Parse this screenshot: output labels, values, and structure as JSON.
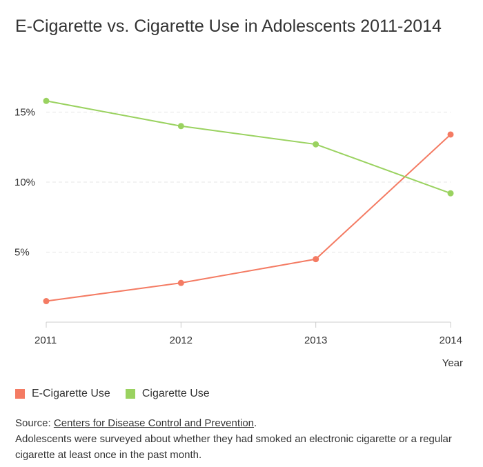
{
  "title": "E-Cigarette vs. Cigarette Use in Adolescents 2011-2014",
  "chart_data": {
    "type": "line",
    "x": [
      "2011",
      "2012",
      "2013",
      "2014"
    ],
    "series": [
      {
        "name": "E-Cigarette Use",
        "color": "#f47b63",
        "values": [
          1.5,
          2.8,
          4.5,
          13.4
        ]
      },
      {
        "name": "Cigarette Use",
        "color": "#9ad260",
        "values": [
          15.8,
          14.0,
          12.7,
          9.2
        ]
      }
    ],
    "y_ticks": [
      5,
      10,
      15
    ],
    "y_tick_labels": [
      "5%",
      "10%",
      "15%"
    ],
    "ylim": [
      0,
      17
    ],
    "xlabel": "Year",
    "ylabel": "",
    "grid": true,
    "legend": "bottom-left"
  },
  "footer": {
    "source_label": "Source: ",
    "source_link": "Centers for Disease Control and Prevention",
    "source_end": ".",
    "note": "Adolescents were surveyed about whether they had smoked an electronic cigarette or a regular cigarette at least once in the past month."
  }
}
